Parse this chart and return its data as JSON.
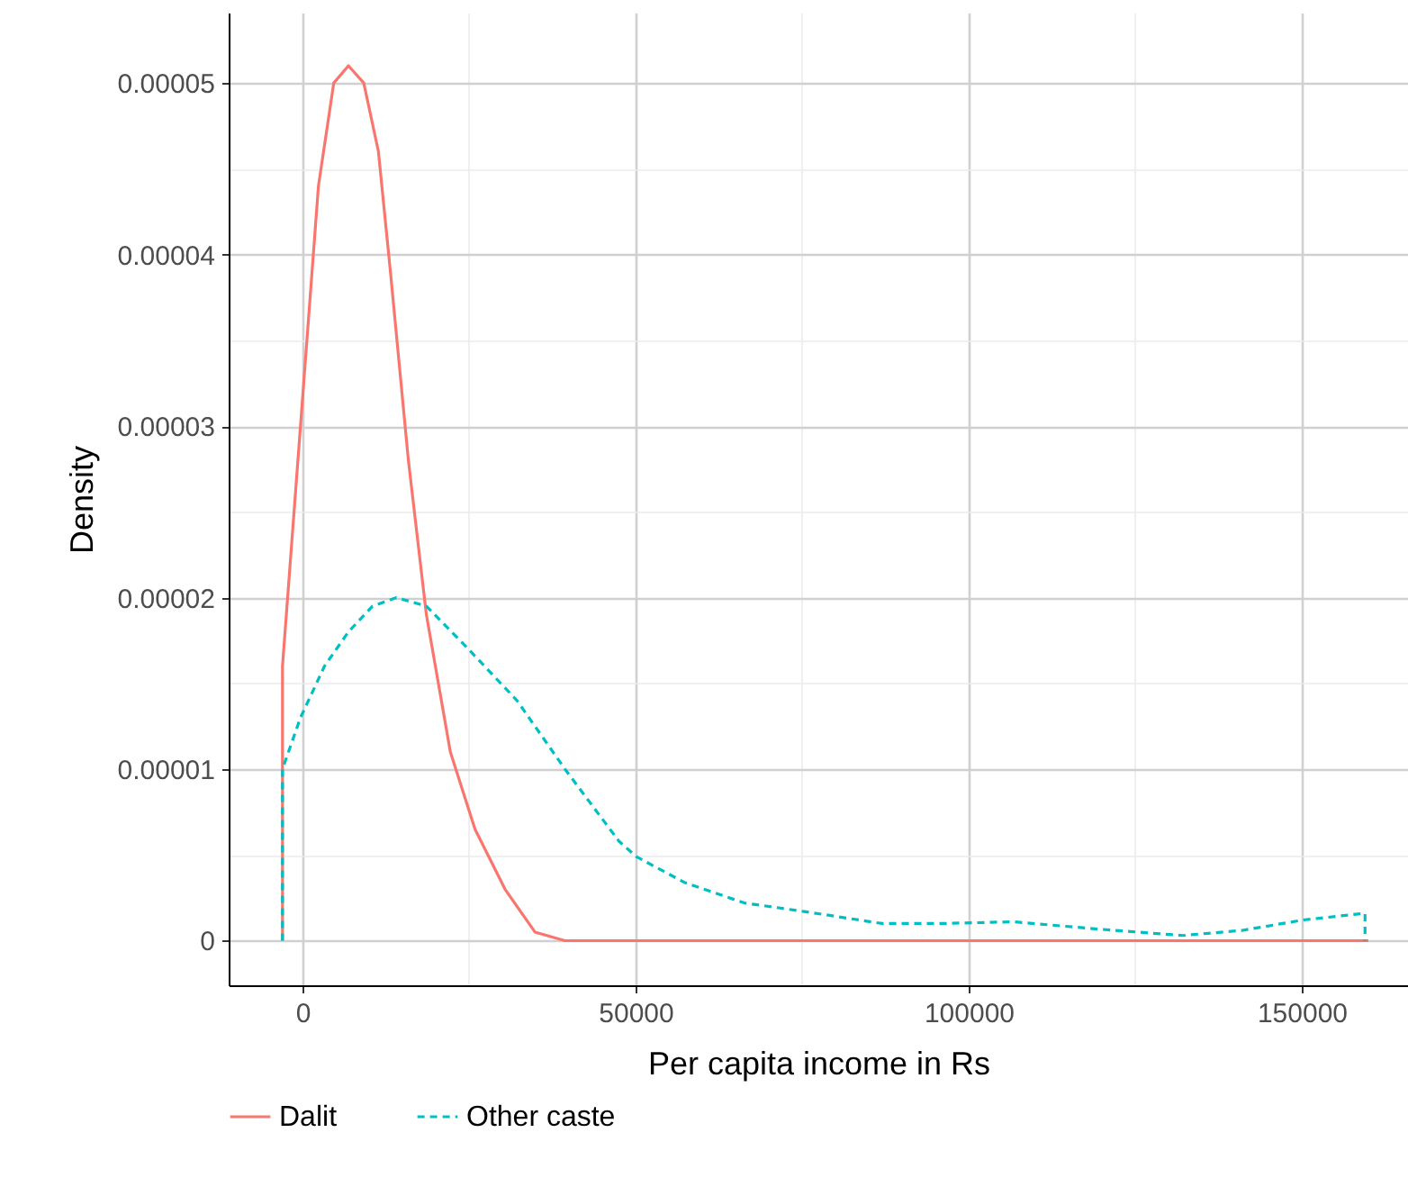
{
  "chart_data": {
    "type": "line",
    "xlabel": "Per capita income in Rs",
    "ylabel": "Density",
    "series": [
      {
        "name": "Dalit",
        "color": "#f8766d",
        "line_style": "solid",
        "x": [
          -3000,
          -3000,
          -300,
          2400,
          4700,
          6900,
          9200,
          11400,
          13200,
          15900,
          18600,
          22200,
          25900,
          30400,
          34900,
          39400,
          160000
        ],
        "values": [
          0,
          1.6e-05,
          3e-05,
          4.4e-05,
          5e-05,
          5.1e-05,
          5e-05,
          4.6e-05,
          3.9e-05,
          2.8e-05,
          1.9e-05,
          1.1e-05,
          6.5e-06,
          3e-06,
          5e-07,
          0,
          0
        ]
      },
      {
        "name": "Other caste",
        "color": "#00bfc4",
        "line_style": "dashed",
        "x": [
          -3000,
          -3000,
          -300,
          3300,
          6900,
          10500,
          14100,
          18600,
          24900,
          32200,
          39400,
          47500,
          50100,
          57300,
          66300,
          75300,
          87000,
          96000,
          106800,
          118600,
          132100,
          141100,
          150100,
          159500,
          159500
        ],
        "values": [
          0,
          1e-05,
          1.3e-05,
          1.6e-05,
          1.8e-05,
          1.95e-05,
          2e-05,
          1.95e-05,
          1.7e-05,
          1.4e-05,
          1e-05,
          5.8e-06,
          4.9e-06,
          3.4e-06,
          2.2e-06,
          1.7e-06,
          1e-06,
          1e-06,
          1.1e-06,
          7e-07,
          3e-07,
          6e-07,
          1.2e-06,
          1.6e-06,
          0
        ]
      }
    ],
    "xlim": [
      -11080,
      165950
    ],
    "ylim": [
      -2.6e-06,
      5.41e-05
    ],
    "xticks": [
      0,
      {
        "value": 25000,
        "label": null
      },
      50000,
      {
        "value": 75000,
        "label": null
      },
      100000,
      {
        "value": 125000,
        "label": null
      },
      150000
    ],
    "yticks": [
      0,
      {
        "value": 5e-06,
        "label": null
      },
      {
        "value": 1e-05,
        "label": "0.00001"
      },
      {
        "value": 1.5e-05,
        "label": null
      },
      {
        "value": 2e-05,
        "label": "0.00002"
      },
      {
        "value": 2.5e-05,
        "label": null
      },
      {
        "value": 3e-05,
        "label": "0.00003"
      },
      {
        "value": 3.5e-05,
        "label": null
      },
      {
        "value": 4e-05,
        "label": "0.00004"
      },
      {
        "value": 4.5e-05,
        "label": null
      },
      {
        "value": 5e-05,
        "label": "0.00005"
      }
    ],
    "grid": true,
    "legend": "bottom"
  }
}
